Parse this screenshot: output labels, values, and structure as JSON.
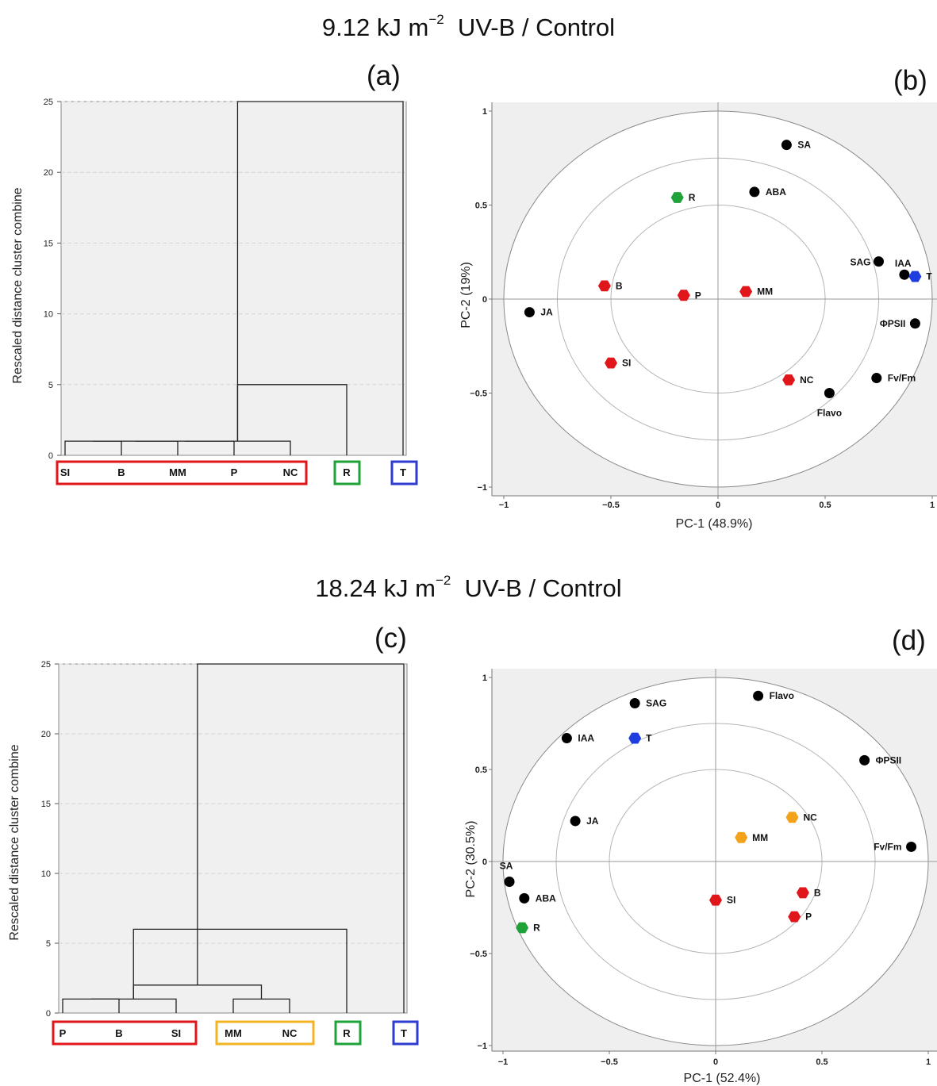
{
  "titles": {
    "top": {
      "prefix": "9.12 kJ m",
      "exp": "−2",
      "suffix": "  UV-B / Control"
    },
    "bottom": {
      "prefix": "18.24 kJ m",
      "exp": "−2",
      "suffix": "  UV-B / Control"
    }
  },
  "chart_data": [
    {
      "panel": "(a)",
      "type": "dendrogram",
      "ylabel": "Rescaled distance cluster combine",
      "ylim": [
        0,
        25
      ],
      "yticks": [
        "0",
        "5",
        "10",
        "15",
        "20",
        "25"
      ],
      "leaves": [
        "SI",
        "B",
        "MM",
        "P",
        "NC",
        "R",
        "T"
      ],
      "merges": [
        {
          "left": 0,
          "right": 1,
          "height": 1
        },
        {
          "left": 1,
          "right": 2,
          "height": 1
        },
        {
          "left": 2,
          "right": 3,
          "height": 1
        },
        {
          "left": 3,
          "right": 4,
          "height": 1
        },
        {
          "left": 3,
          "right": 5,
          "height": 5
        },
        {
          "left": 4,
          "right": 6,
          "height": 25
        }
      ],
      "groups": [
        {
          "leaves": [
            "SI",
            "B",
            "MM",
            "P",
            "NC"
          ],
          "color": "#e0161b"
        },
        {
          "leaves": [
            "R"
          ],
          "color": "#1fa339"
        },
        {
          "leaves": [
            "T"
          ],
          "color": "#2e3bd1"
        }
      ]
    },
    {
      "panel": "(b)",
      "type": "scatter",
      "xlabel": "PC-1 (48.9%)",
      "ylabel": "PC-2 (19%)",
      "xlim": [
        -1,
        1
      ],
      "ylim": [
        -1,
        1
      ],
      "xticks": [
        "−1",
        "−0.5",
        "0",
        "0.5",
        "1"
      ],
      "yticks": [
        "−1",
        "−0.5",
        "0",
        "0.5",
        "1"
      ],
      "points": [
        {
          "label": "SA",
          "x": 0.32,
          "y": 0.82,
          "shape": "circle",
          "color": "#000000"
        },
        {
          "label": "ABA",
          "x": 0.17,
          "y": 0.57,
          "shape": "circle",
          "color": "#000000"
        },
        {
          "label": "R",
          "x": -0.19,
          "y": 0.54,
          "shape": "hex",
          "color": "#1fa339"
        },
        {
          "label": "SAG",
          "x": 0.75,
          "y": 0.2,
          "shape": "circle",
          "color": "#000000"
        },
        {
          "label": "IAA",
          "x": 0.87,
          "y": 0.13,
          "shape": "circle",
          "color": "#000000"
        },
        {
          "label": "T",
          "x": 0.92,
          "y": 0.12,
          "shape": "hex",
          "color": "#1f3ee0"
        },
        {
          "label": "B",
          "x": -0.53,
          "y": 0.07,
          "shape": "hex",
          "color": "#e0161b"
        },
        {
          "label": "P",
          "x": -0.16,
          "y": 0.02,
          "shape": "hex",
          "color": "#e0161b"
        },
        {
          "label": "MM",
          "x": 0.13,
          "y": 0.04,
          "shape": "hex",
          "color": "#e0161b"
        },
        {
          "label": "JA",
          "x": -0.88,
          "y": -0.07,
          "shape": "circle",
          "color": "#000000"
        },
        {
          "label": "ΦPSII",
          "x": 0.92,
          "y": -0.13,
          "shape": "circle",
          "color": "#000000"
        },
        {
          "label": "SI",
          "x": -0.5,
          "y": -0.34,
          "shape": "hex",
          "color": "#e0161b"
        },
        {
          "label": "NC",
          "x": 0.33,
          "y": -0.43,
          "shape": "hex",
          "color": "#e0161b"
        },
        {
          "label": "Fv/Fm",
          "x": 0.74,
          "y": -0.42,
          "shape": "circle",
          "color": "#000000"
        },
        {
          "label": "Flavo",
          "x": 0.52,
          "y": -0.5,
          "shape": "circle",
          "color": "#000000"
        }
      ]
    },
    {
      "panel": "(c)",
      "type": "dendrogram",
      "ylabel": "Rescaled distance cluster combine",
      "ylim": [
        0,
        25
      ],
      "yticks": [
        "0",
        "5",
        "10",
        "15",
        "20",
        "25"
      ],
      "leaves": [
        "P",
        "B",
        "SI",
        "MM",
        "NC",
        "R",
        "T"
      ],
      "merges": [
        {
          "left": 0,
          "right": 1,
          "height": 1
        },
        {
          "left": 1,
          "right": 2,
          "height": 1
        },
        {
          "left": 3,
          "right": 4,
          "height": 1
        },
        {
          "left": 1,
          "right": 3,
          "height": 2
        },
        {
          "left": 2,
          "right": 5,
          "height": 6
        },
        {
          "left": 3,
          "right": 6,
          "height": 25
        }
      ],
      "groups": [
        {
          "leaves": [
            "P",
            "B",
            "SI"
          ],
          "color": "#e0161b"
        },
        {
          "leaves": [
            "MM",
            "NC"
          ],
          "color": "#f2b324"
        },
        {
          "leaves": [
            "R"
          ],
          "color": "#1fa339"
        },
        {
          "leaves": [
            "T"
          ],
          "color": "#2e3bd1"
        }
      ]
    },
    {
      "panel": "(d)",
      "type": "scatter",
      "xlabel": "PC-1 (52.4%)",
      "ylabel": "PC-2 (30.5%)",
      "xlim": [
        -1,
        1
      ],
      "ylim": [
        -1,
        1
      ],
      "xticks": [
        "−1",
        "−0.5",
        "0",
        "0.5",
        "1"
      ],
      "yticks": [
        "−1",
        "−0.5",
        "0",
        "0.5",
        "1"
      ],
      "points": [
        {
          "label": "Flavo",
          "x": 0.2,
          "y": 0.9,
          "shape": "circle",
          "color": "#000000"
        },
        {
          "label": "SAG",
          "x": -0.38,
          "y": 0.86,
          "shape": "circle",
          "color": "#000000"
        },
        {
          "label": "IAA",
          "x": -0.7,
          "y": 0.67,
          "shape": "circle",
          "color": "#000000"
        },
        {
          "label": "T",
          "x": -0.38,
          "y": 0.67,
          "shape": "hex",
          "color": "#1f3ee0"
        },
        {
          "label": "ΦPSII",
          "x": 0.7,
          "y": 0.55,
          "shape": "circle",
          "color": "#000000"
        },
        {
          "label": "NC",
          "x": 0.36,
          "y": 0.24,
          "shape": "hex",
          "color": "#f2a31a"
        },
        {
          "label": "JA",
          "x": -0.66,
          "y": 0.22,
          "shape": "circle",
          "color": "#000000"
        },
        {
          "label": "MM",
          "x": 0.12,
          "y": 0.13,
          "shape": "hex",
          "color": "#f2a31a"
        },
        {
          "label": "Fv/Fm",
          "x": 0.92,
          "y": 0.08,
          "shape": "circle",
          "color": "#000000"
        },
        {
          "label": "SA",
          "x": -0.97,
          "y": -0.11,
          "shape": "circle",
          "color": "#000000"
        },
        {
          "label": "ABA",
          "x": -0.9,
          "y": -0.2,
          "shape": "circle",
          "color": "#000000"
        },
        {
          "label": "B",
          "x": 0.41,
          "y": -0.17,
          "shape": "hex",
          "color": "#e0161b"
        },
        {
          "label": "SI",
          "x": 0.0,
          "y": -0.21,
          "shape": "hex",
          "color": "#e0161b"
        },
        {
          "label": "P",
          "x": 0.37,
          "y": -0.3,
          "shape": "hex",
          "color": "#e0161b"
        },
        {
          "label": "R",
          "x": -0.91,
          "y": -0.36,
          "shape": "hex",
          "color": "#1fa339"
        }
      ]
    }
  ]
}
